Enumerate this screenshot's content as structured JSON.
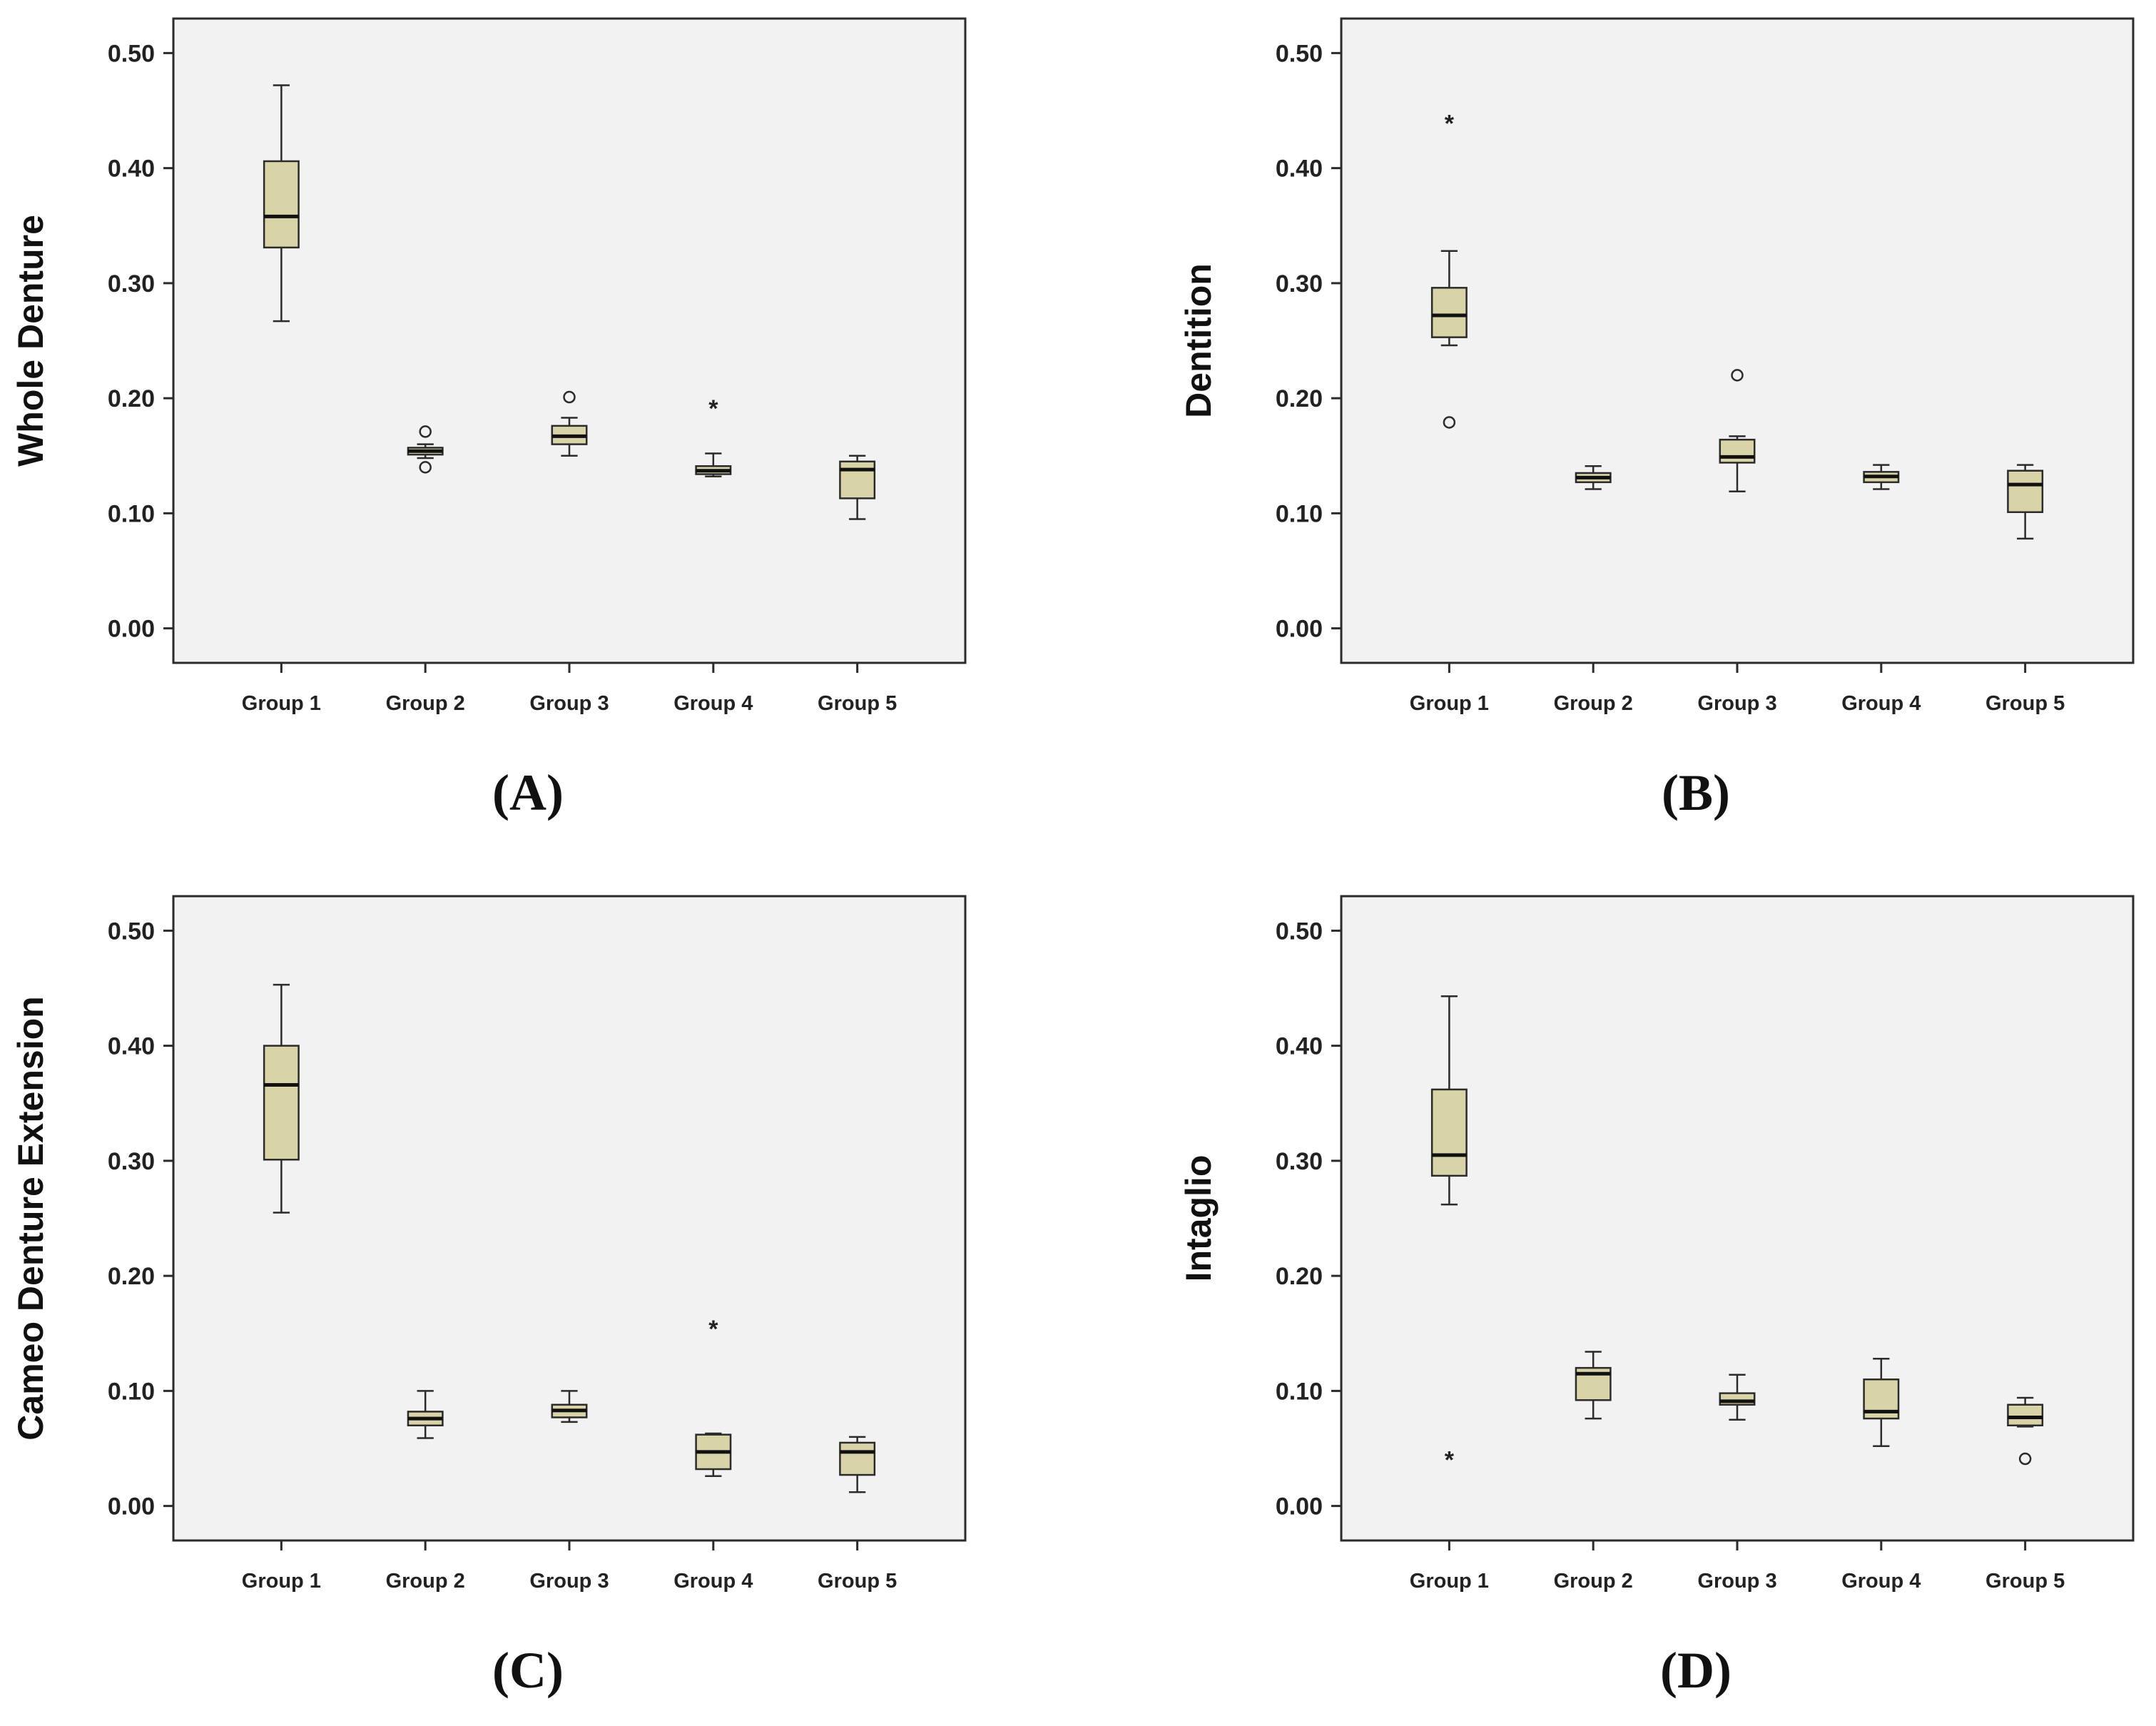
{
  "chart_data": [
    {
      "type": "box",
      "panel_label": "(A)",
      "ylabel": "Whole Denture",
      "ylim": [
        -0.03,
        0.53
      ],
      "yticks": [
        "0.00",
        "0.10",
        "0.20",
        "0.30",
        "0.40",
        "0.50"
      ],
      "categories": [
        "Group 1",
        "Group 2",
        "Group 3",
        "Group 4",
        "Group 5"
      ],
      "boxes": [
        {
          "whisker_low": 0.267,
          "q1": 0.331,
          "median": 0.358,
          "q3": 0.406,
          "whisker_high": 0.472,
          "outliers": [],
          "extremes": []
        },
        {
          "whisker_low": 0.148,
          "q1": 0.151,
          "median": 0.154,
          "q3": 0.157,
          "whisker_high": 0.16,
          "outliers": [
            0.171,
            0.14
          ],
          "extremes": []
        },
        {
          "whisker_low": 0.15,
          "q1": 0.16,
          "median": 0.167,
          "q3": 0.176,
          "whisker_high": 0.183,
          "outliers": [
            0.201
          ],
          "extremes": []
        },
        {
          "whisker_low": 0.132,
          "q1": 0.134,
          "median": 0.137,
          "q3": 0.141,
          "whisker_high": 0.152,
          "outliers": [],
          "extremes": [
            0.195
          ]
        },
        {
          "whisker_low": 0.095,
          "q1": 0.113,
          "median": 0.138,
          "q3": 0.145,
          "whisker_high": 0.15,
          "outliers": [],
          "extremes": []
        }
      ]
    },
    {
      "type": "box",
      "panel_label": "(B)",
      "ylabel": "Dentition",
      "ylim": [
        -0.03,
        0.53
      ],
      "yticks": [
        "0.00",
        "0.10",
        "0.20",
        "0.30",
        "0.40",
        "0.50"
      ],
      "categories": [
        "Group 1",
        "Group 2",
        "Group 3",
        "Group 4",
        "Group 5"
      ],
      "boxes": [
        {
          "whisker_low": 0.246,
          "q1": 0.253,
          "median": 0.272,
          "q3": 0.296,
          "whisker_high": 0.328,
          "outliers": [
            0.179
          ],
          "extremes": [
            0.443
          ]
        },
        {
          "whisker_low": 0.121,
          "q1": 0.127,
          "median": 0.131,
          "q3": 0.135,
          "whisker_high": 0.141,
          "outliers": [],
          "extremes": []
        },
        {
          "whisker_low": 0.119,
          "q1": 0.144,
          "median": 0.149,
          "q3": 0.164,
          "whisker_high": 0.167,
          "outliers": [
            0.22
          ],
          "extremes": []
        },
        {
          "whisker_low": 0.121,
          "q1": 0.127,
          "median": 0.132,
          "q3": 0.136,
          "whisker_high": 0.142,
          "outliers": [],
          "extremes": []
        },
        {
          "whisker_low": 0.078,
          "q1": 0.101,
          "median": 0.125,
          "q3": 0.137,
          "whisker_high": 0.142,
          "outliers": [],
          "extremes": []
        }
      ]
    },
    {
      "type": "box",
      "panel_label": "(C)",
      "ylabel": "Cameo Denture Extension",
      "ylim": [
        -0.03,
        0.53
      ],
      "yticks": [
        "0.00",
        "0.10",
        "0.20",
        "0.30",
        "0.40",
        "0.50"
      ],
      "categories": [
        "Group 1",
        "Group 2",
        "Group 3",
        "Group 4",
        "Group 5"
      ],
      "boxes": [
        {
          "whisker_low": 0.255,
          "q1": 0.301,
          "median": 0.366,
          "q3": 0.4,
          "whisker_high": 0.453,
          "outliers": [],
          "extremes": []
        },
        {
          "whisker_low": 0.059,
          "q1": 0.07,
          "median": 0.076,
          "q3": 0.082,
          "whisker_high": 0.1,
          "outliers": [],
          "extremes": []
        },
        {
          "whisker_low": 0.073,
          "q1": 0.077,
          "median": 0.083,
          "q3": 0.088,
          "whisker_high": 0.1,
          "outliers": [],
          "extremes": []
        },
        {
          "whisker_low": 0.026,
          "q1": 0.032,
          "median": 0.047,
          "q3": 0.062,
          "whisker_high": 0.063,
          "outliers": [],
          "extremes": [
            0.158
          ]
        },
        {
          "whisker_low": 0.012,
          "q1": 0.027,
          "median": 0.047,
          "q3": 0.055,
          "whisker_high": 0.06,
          "outliers": [],
          "extremes": []
        }
      ]
    },
    {
      "type": "box",
      "panel_label": "(D)",
      "ylabel": "Intaglio",
      "ylim": [
        -0.03,
        0.53
      ],
      "yticks": [
        "0.00",
        "0.10",
        "0.20",
        "0.30",
        "0.40",
        "0.50"
      ],
      "categories": [
        "Group 1",
        "Group 2",
        "Group 3",
        "Group 4",
        "Group 5"
      ],
      "boxes": [
        {
          "whisker_low": 0.262,
          "q1": 0.287,
          "median": 0.305,
          "q3": 0.362,
          "whisker_high": 0.443,
          "outliers": [],
          "extremes": [
            0.044
          ]
        },
        {
          "whisker_low": 0.076,
          "q1": 0.092,
          "median": 0.115,
          "q3": 0.12,
          "whisker_high": 0.134,
          "outliers": [],
          "extremes": []
        },
        {
          "whisker_low": 0.075,
          "q1": 0.088,
          "median": 0.091,
          "q3": 0.098,
          "whisker_high": 0.114,
          "outliers": [],
          "extremes": []
        },
        {
          "whisker_low": 0.052,
          "q1": 0.076,
          "median": 0.082,
          "q3": 0.11,
          "whisker_high": 0.128,
          "outliers": [],
          "extremes": []
        },
        {
          "whisker_low": 0.069,
          "q1": 0.07,
          "median": 0.077,
          "q3": 0.088,
          "whisker_high": 0.094,
          "outliers": [
            0.041
          ],
          "extremes": []
        }
      ]
    }
  ],
  "colors": {
    "box_fill": "#d9d4a7",
    "plot_bg": "#f2f2f2",
    "stroke": "#2b2b2b"
  }
}
